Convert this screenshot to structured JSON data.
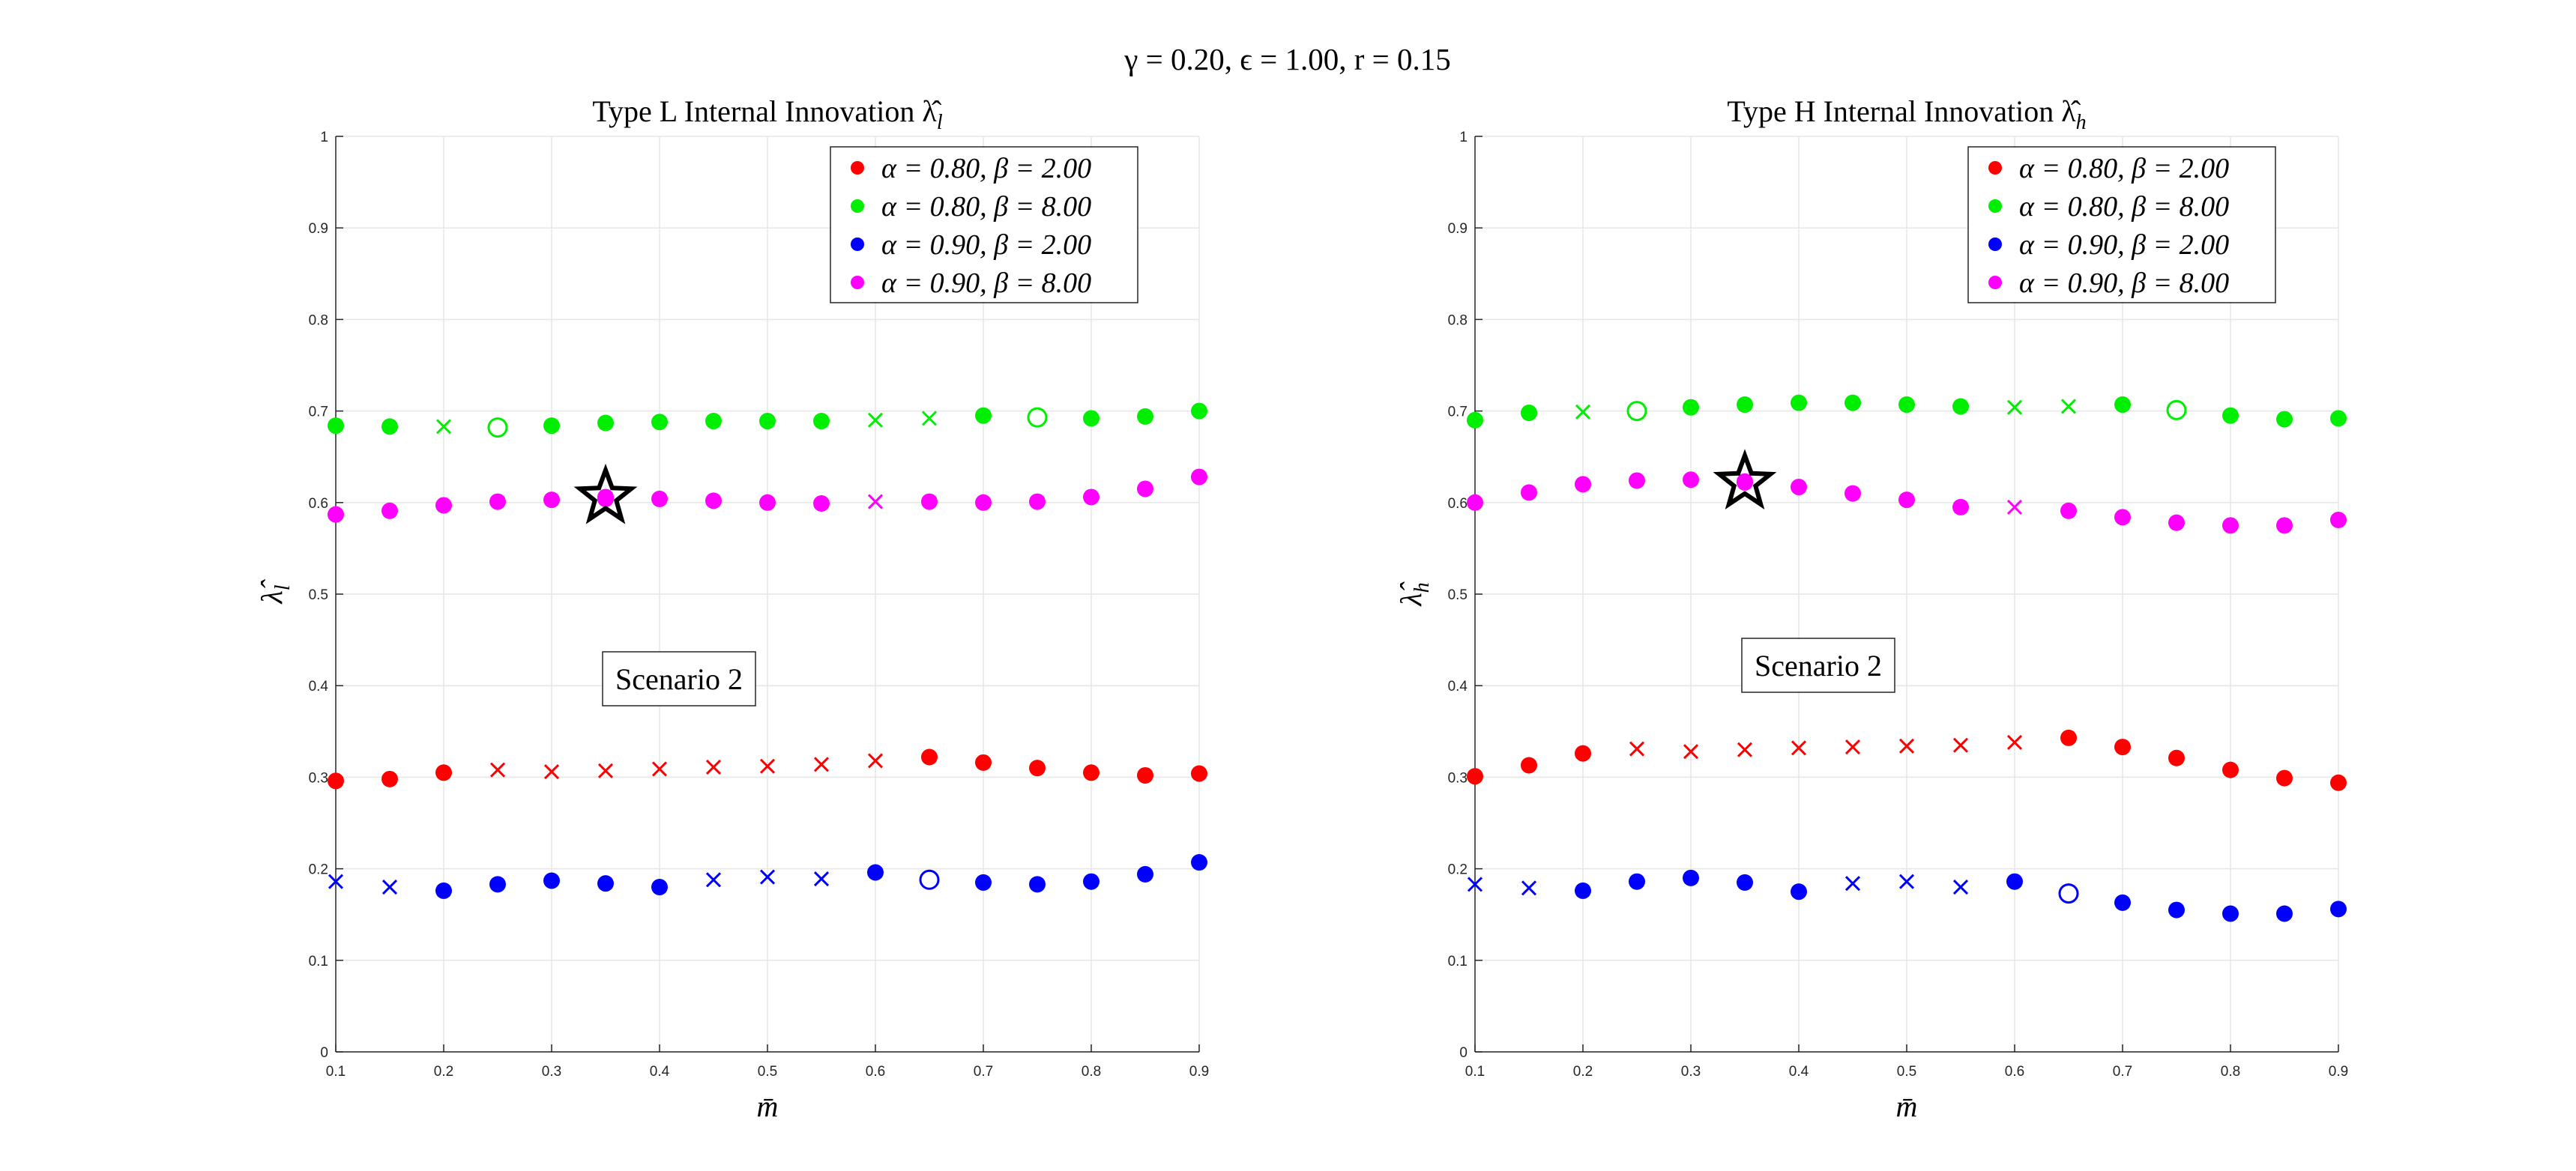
{
  "figure": {
    "suptitle": "γ = 0.20, ϵ = 1.00, r = 0.15"
  },
  "marker_legend_note": "",
  "chart_data": [
    {
      "type": "scatter",
      "title": "Type L Internal Innovation λ̂",
      "title_subscript": "l",
      "xlabel": "m̄",
      "ylabel": "λ̂",
      "ylabel_subscript": "l",
      "xlim": [
        0.1,
        0.9
      ],
      "ylim": [
        0,
        1
      ],
      "xticks": [
        "0.1",
        "0.2",
        "0.3",
        "0.4",
        "0.5",
        "0.6",
        "0.7",
        "0.8",
        "0.9"
      ],
      "yticks": [
        "0",
        "0.1",
        "0.2",
        "0.3",
        "0.4",
        "0.5",
        "0.6",
        "0.7",
        "0.8",
        "0.9",
        "1"
      ],
      "grid": true,
      "legend_position": "top-right",
      "annotation": "Scenario 2",
      "star": {
        "x": 0.35,
        "y": 0.606
      },
      "x": [
        0.1,
        0.15,
        0.2,
        0.25,
        0.3,
        0.35,
        0.4,
        0.45,
        0.5,
        0.55,
        0.6,
        0.65,
        0.7,
        0.75,
        0.8,
        0.85,
        0.9
      ],
      "series": [
        {
          "name": "α = 0.80, β = 2.00",
          "color": "#ff0000",
          "y": [
            0.296,
            0.298,
            0.305,
            0.308,
            0.306,
            0.307,
            0.309,
            0.311,
            0.312,
            0.314,
            0.318,
            0.322,
            0.316,
            0.31,
            0.305,
            0.302,
            0.304
          ],
          "markers": [
            "dot",
            "dot",
            "dot",
            "x",
            "x",
            "x",
            "x",
            "x",
            "x",
            "x",
            "x",
            "dot",
            "dot",
            "dot",
            "dot",
            "dot",
            "dot"
          ]
        },
        {
          "name": "α = 0.80, β = 8.00",
          "color": "#00ee00",
          "y": [
            0.684,
            0.683,
            0.683,
            0.682,
            0.684,
            0.687,
            0.688,
            0.689,
            0.689,
            0.689,
            0.69,
            0.692,
            0.695,
            0.693,
            0.692,
            0.694,
            0.7
          ],
          "markers": [
            "dot",
            "dot",
            "x",
            "circle",
            "dot",
            "dot",
            "dot",
            "dot",
            "dot",
            "dot",
            "x",
            "x",
            "dot",
            "circle",
            "dot",
            "dot",
            "dot"
          ]
        },
        {
          "name": "α = 0.90, β = 2.00",
          "color": "#0000ff",
          "y": [
            0.186,
            0.18,
            0.176,
            0.183,
            0.187,
            0.184,
            0.18,
            0.188,
            0.191,
            0.189,
            0.196,
            0.188,
            0.185,
            0.183,
            0.186,
            0.194,
            0.207
          ],
          "markers": [
            "x",
            "x",
            "dot",
            "dot",
            "dot",
            "dot",
            "dot",
            "x",
            "x",
            "x",
            "dot",
            "circle",
            "dot",
            "dot",
            "dot",
            "dot",
            "dot"
          ]
        },
        {
          "name": "α = 0.90, β = 8.00",
          "color": "#ff00ff",
          "y": [
            0.587,
            0.591,
            0.597,
            0.601,
            0.603,
            0.604,
            0.604,
            0.602,
            0.6,
            0.599,
            0.601,
            0.601,
            0.6,
            0.601,
            0.606,
            0.615,
            0.628
          ],
          "markers": [
            "dot",
            "dot",
            "dot",
            "dot",
            "dot",
            "dot",
            "dot",
            "dot",
            "dot",
            "dot",
            "x",
            "dot",
            "dot",
            "dot",
            "dot",
            "dot",
            "dot"
          ]
        }
      ]
    },
    {
      "type": "scatter",
      "title": "Type H Internal Innovation λ̂",
      "title_subscript": "h",
      "xlabel": "m̄",
      "ylabel": "λ̂",
      "ylabel_subscript": "h",
      "xlim": [
        0.1,
        0.9
      ],
      "ylim": [
        0,
        1
      ],
      "xticks": [
        "0.1",
        "0.2",
        "0.3",
        "0.4",
        "0.5",
        "0.6",
        "0.7",
        "0.8",
        "0.9"
      ],
      "yticks": [
        "0",
        "0.1",
        "0.2",
        "0.3",
        "0.4",
        "0.5",
        "0.6",
        "0.7",
        "0.8",
        "0.9",
        "1"
      ],
      "grid": true,
      "legend_position": "top-right",
      "annotation": "Scenario 2",
      "star": {
        "x": 0.35,
        "y": 0.622
      },
      "x": [
        0.1,
        0.15,
        0.2,
        0.25,
        0.3,
        0.35,
        0.4,
        0.45,
        0.5,
        0.55,
        0.6,
        0.65,
        0.7,
        0.75,
        0.8,
        0.85,
        0.9
      ],
      "series": [
        {
          "name": "α = 0.80, β = 2.00",
          "color": "#ff0000",
          "y": [
            0.301,
            0.313,
            0.326,
            0.331,
            0.328,
            0.33,
            0.332,
            0.333,
            0.334,
            0.335,
            0.338,
            0.343,
            0.333,
            0.321,
            0.308,
            0.299,
            0.294
          ],
          "markers": [
            "dot",
            "dot",
            "dot",
            "x",
            "x",
            "x",
            "x",
            "x",
            "x",
            "x",
            "x",
            "dot",
            "dot",
            "dot",
            "dot",
            "dot",
            "dot"
          ]
        },
        {
          "name": "α = 0.80, β = 8.00",
          "color": "#00ee00",
          "y": [
            0.69,
            0.698,
            0.699,
            0.7,
            0.704,
            0.707,
            0.709,
            0.709,
            0.707,
            0.705,
            0.704,
            0.705,
            0.707,
            0.701,
            0.695,
            0.691,
            0.692
          ],
          "markers": [
            "dot",
            "dot",
            "x",
            "circle",
            "dot",
            "dot",
            "dot",
            "dot",
            "dot",
            "dot",
            "x",
            "x",
            "dot",
            "circle",
            "dot",
            "dot",
            "dot"
          ]
        },
        {
          "name": "α = 0.90, β = 2.00",
          "color": "#0000ff",
          "y": [
            0.183,
            0.179,
            0.176,
            0.186,
            0.19,
            0.185,
            0.175,
            0.184,
            0.186,
            0.18,
            0.186,
            0.173,
            0.163,
            0.155,
            0.151,
            0.151,
            0.156
          ],
          "markers": [
            "x",
            "x",
            "dot",
            "dot",
            "dot",
            "dot",
            "dot",
            "x",
            "x",
            "x",
            "dot",
            "circle",
            "dot",
            "dot",
            "dot",
            "dot",
            "dot"
          ]
        },
        {
          "name": "α = 0.90, β = 8.00",
          "color": "#ff00ff",
          "y": [
            0.6,
            0.611,
            0.62,
            0.624,
            0.625,
            0.623,
            0.617,
            0.61,
            0.603,
            0.595,
            0.595,
            0.591,
            0.584,
            0.578,
            0.575,
            0.575,
            0.581
          ],
          "markers": [
            "dot",
            "dot",
            "dot",
            "dot",
            "dot",
            "dot",
            "dot",
            "dot",
            "dot",
            "dot",
            "x",
            "dot",
            "dot",
            "dot",
            "dot",
            "dot",
            "dot"
          ]
        }
      ]
    }
  ]
}
